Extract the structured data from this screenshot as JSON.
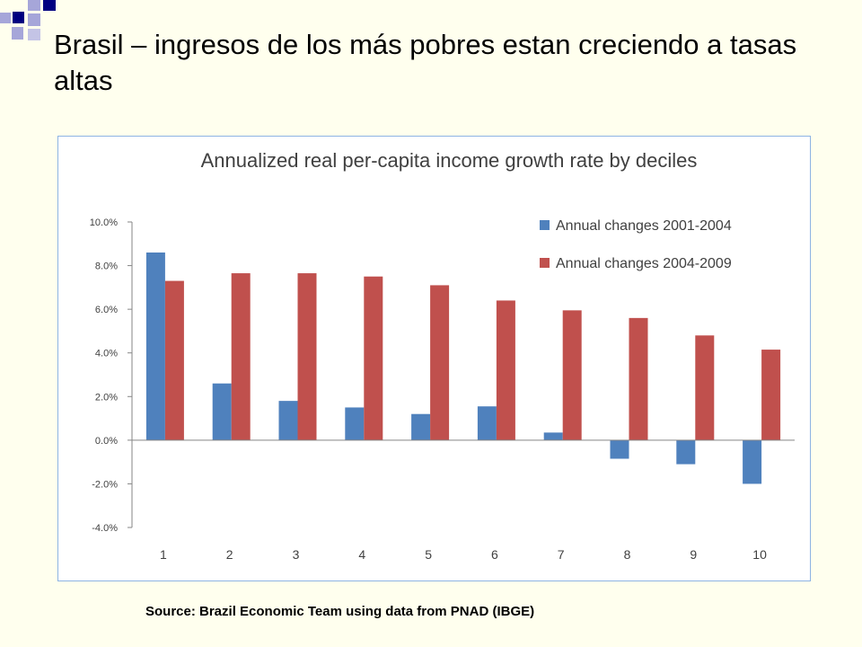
{
  "slide": {
    "title": "Brasil – ingresos de los más pobres estan creciendo a tasas altas",
    "source": "Source: Brazil Economic Team using data from PNAD (IBGE)"
  },
  "colors": {
    "background": "#FFFFEE",
    "decor_dark": "#000080",
    "decor_light": "#A6A6D9",
    "chart_border": "#8EB4E3",
    "series_2001_2004": "#4F81BD",
    "series_2004_2009": "#C0504D"
  },
  "chart_data": {
    "type": "bar",
    "title": "Annualized real per-capita income growth rate by deciles",
    "xlabel": "",
    "ylabel": "",
    "categories": [
      "1",
      "2",
      "3",
      "4",
      "5",
      "6",
      "7",
      "8",
      "9",
      "10"
    ],
    "series": [
      {
        "name": "Annual changes 2001-2004",
        "color": "#4F81BD",
        "values": [
          8.6,
          2.6,
          1.8,
          1.5,
          1.2,
          1.55,
          0.35,
          -0.85,
          -1.1,
          -2.0
        ]
      },
      {
        "name": "Annual changes 2004-2009",
        "color": "#C0504D",
        "values": [
          7.3,
          7.65,
          7.65,
          7.5,
          7.1,
          6.4,
          5.95,
          5.6,
          4.8,
          4.15
        ]
      }
    ],
    "ylim": [
      -4,
      10
    ],
    "yticks": [
      10,
      8,
      6,
      4,
      2,
      0,
      -2,
      -4
    ],
    "ytick_labels": [
      "10.0%",
      "8.0%",
      "6.0%",
      "4.0%",
      "2.0%",
      "0.0%",
      "-2.0%",
      "-4.0%"
    ],
    "grid": false,
    "legend_position": "top-right"
  }
}
